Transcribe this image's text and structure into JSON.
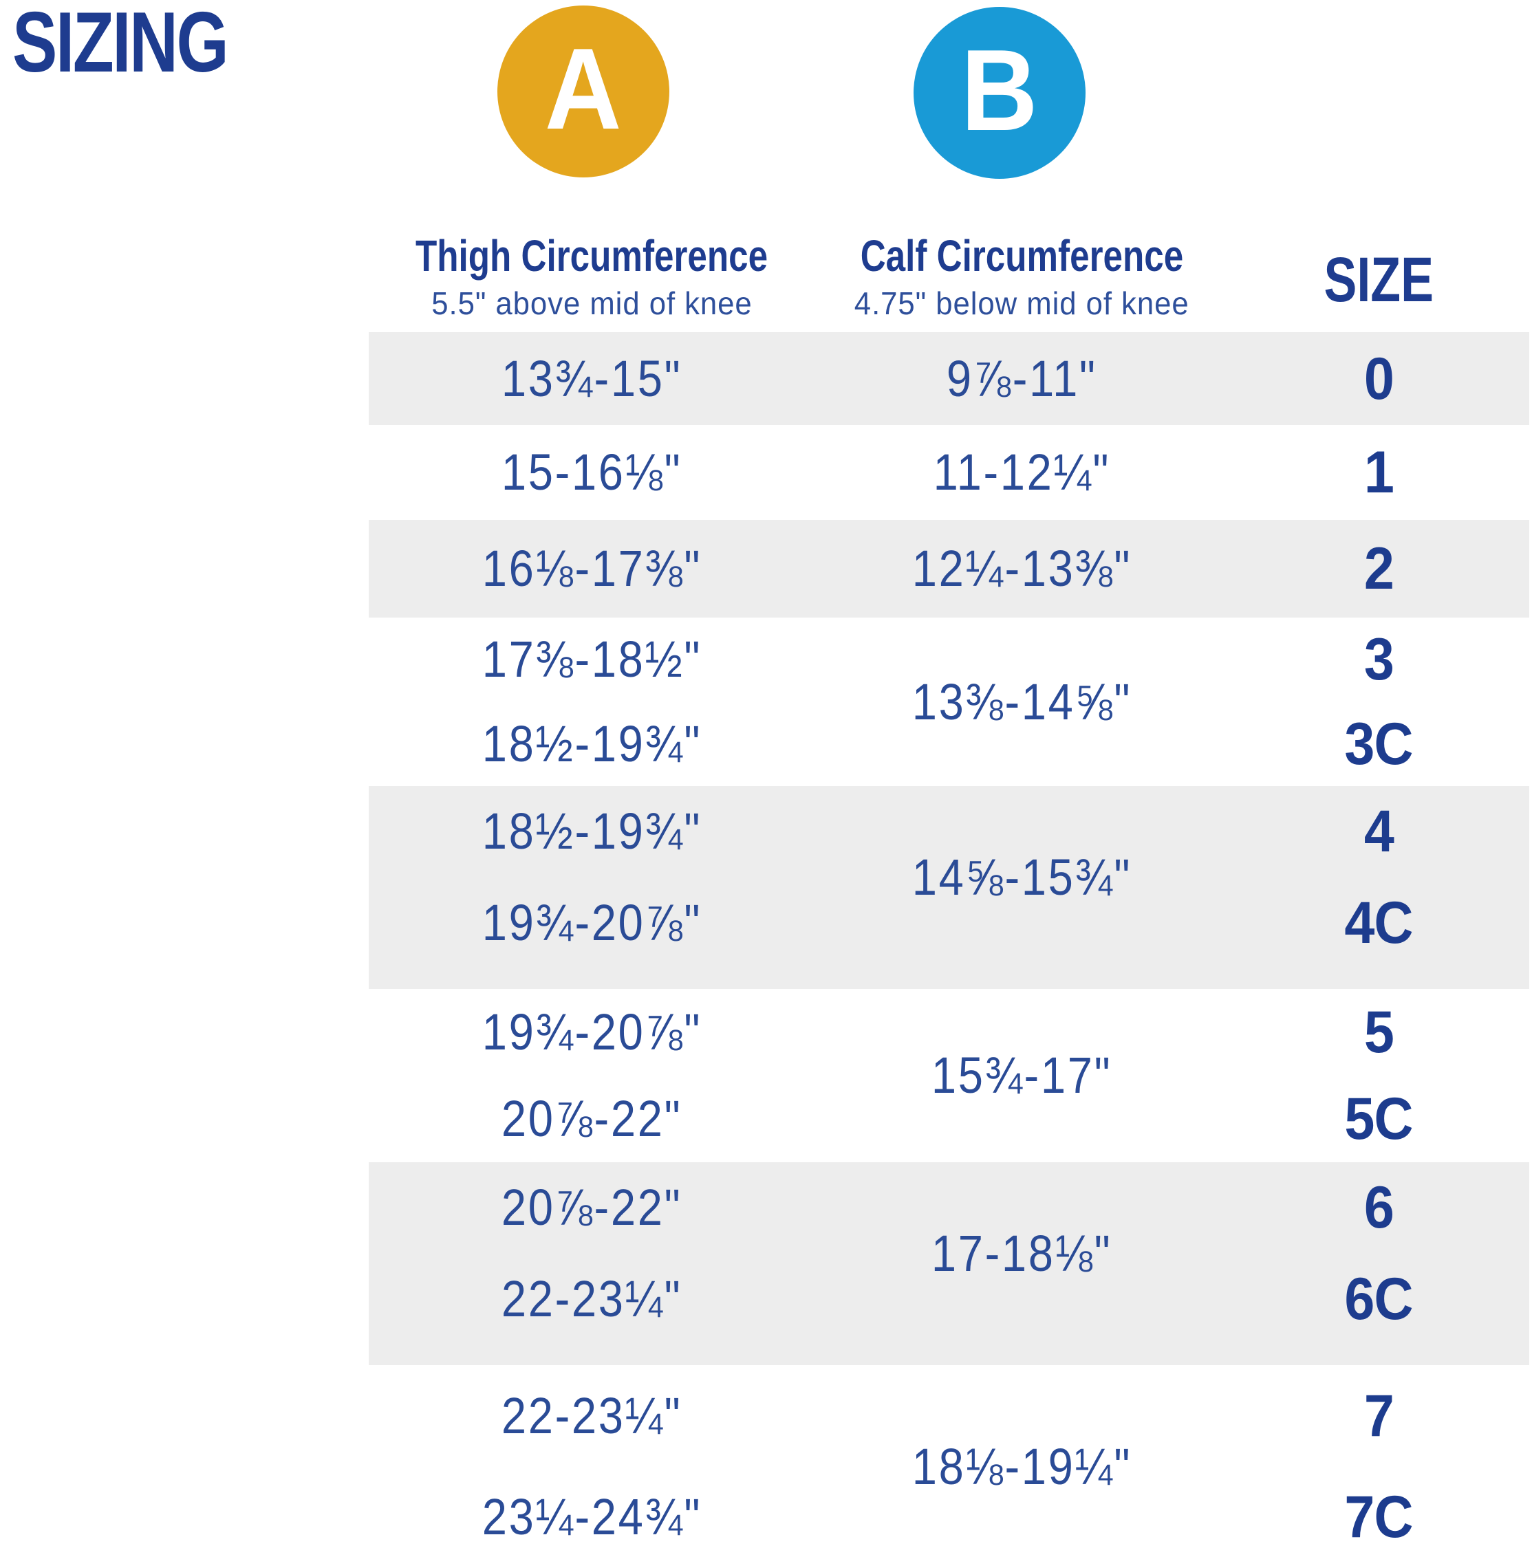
{
  "page": {
    "title": "SIZING"
  },
  "colors": {
    "navy_heading": "#1e3c8f",
    "measure_text": "#2a4b96",
    "size_text": "#1d3c8e",
    "row_shade_gray": "#EDEDED",
    "marker_a_gold": "#E4A61E",
    "marker_b_blue": "#199AD6",
    "background": "#ffffff"
  },
  "chart_data": {
    "type": "table",
    "title": "SIZING",
    "columns": [
      {
        "id": "thigh",
        "marker": "A",
        "marker_color": "#E4A61E",
        "header": "Thigh Circumference",
        "subheader": "5.5\" above mid of knee"
      },
      {
        "id": "calf",
        "marker": "B",
        "marker_color": "#199AD6",
        "header": "Calf Circumference",
        "subheader": "4.75\" below mid of knee"
      },
      {
        "id": "size",
        "header": "SIZE"
      }
    ],
    "rows": [
      {
        "thigh": "13¾-15\"",
        "calf": "9⅞-11\"",
        "size": "0"
      },
      {
        "thigh": "15-16⅛\"",
        "calf": "11-12¼\"",
        "size": "1"
      },
      {
        "thigh": "16⅛-17⅜\"",
        "calf": "12¼-13⅜\"",
        "size": "2"
      },
      {
        "thigh": [
          "17⅜-18½\"",
          "18½-19¾\""
        ],
        "calf": "13⅜-14⅝\"",
        "sizes": [
          "3",
          "3C"
        ]
      },
      {
        "thigh": [
          "18½-19¾\"",
          "19¾-20⅞\""
        ],
        "calf": "14⅝-15¾\"",
        "sizes": [
          "4",
          "4C"
        ]
      },
      {
        "thigh": [
          "19¾-20⅞\"",
          "20⅞-22\""
        ],
        "calf": "15¾-17\"",
        "sizes": [
          "5",
          "5C"
        ]
      },
      {
        "thigh": [
          "20⅞-22\"",
          "22-23¼\""
        ],
        "calf": "17-18⅛\"",
        "sizes": [
          "6",
          "6C"
        ]
      },
      {
        "thigh": [
          "22-23¼\"",
          "23¼-24¾\""
        ],
        "calf": "18⅛-19¼\"",
        "sizes": [
          "7",
          "7C"
        ]
      }
    ]
  }
}
